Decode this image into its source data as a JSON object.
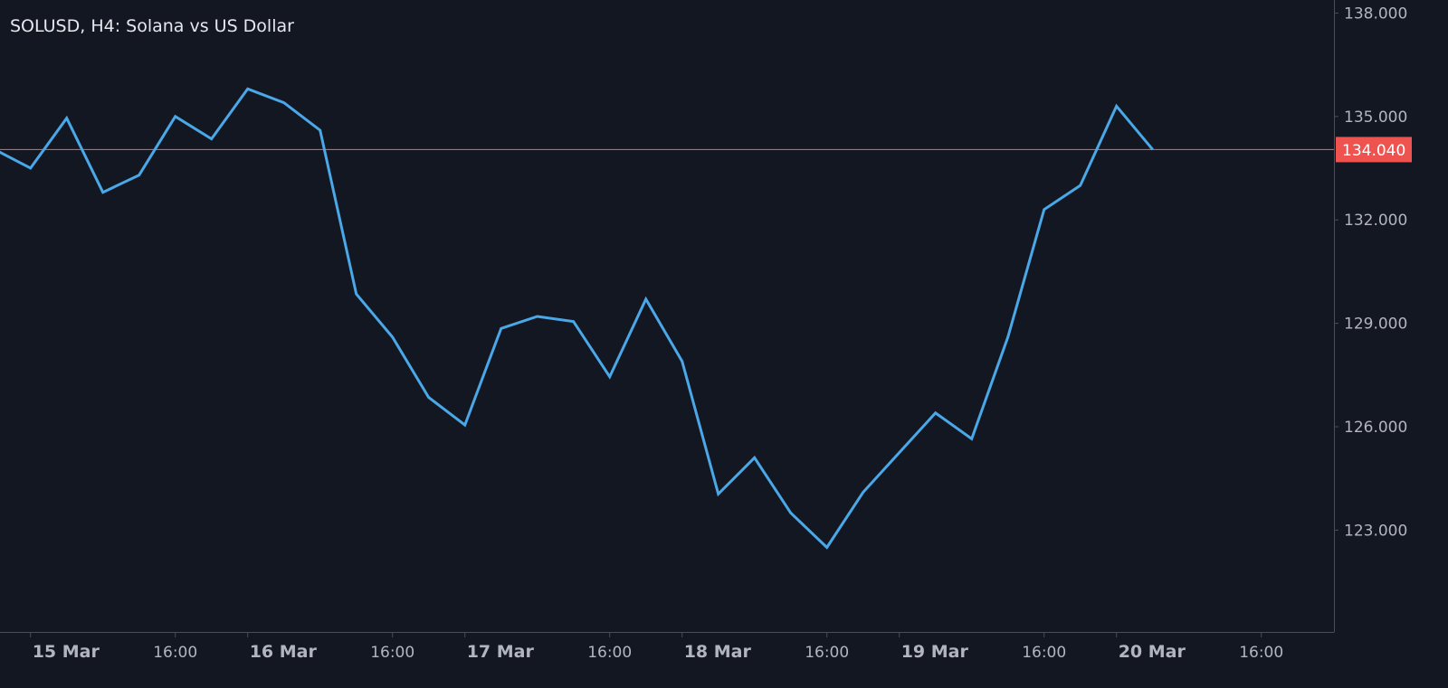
{
  "chart_data": {
    "type": "line",
    "title": "SOLUSD, H4: Solana vs US Dollar",
    "xlabel": "",
    "ylabel": "",
    "ylim": [
      120.0,
      138.2
    ],
    "grid": false,
    "y_ticks": [
      "123.000",
      "126.000",
      "129.000",
      "132.000",
      "135.000",
      "138.000"
    ],
    "x_ticks": [
      {
        "label": "15 Mar",
        "major": true,
        "index": 1
      },
      {
        "label": "16:00",
        "major": false,
        "index": 5
      },
      {
        "label": "16 Mar",
        "major": true,
        "index": 7
      },
      {
        "label": "16:00",
        "major": false,
        "index": 11
      },
      {
        "label": "17 Mar",
        "major": true,
        "index": 13
      },
      {
        "label": "16:00",
        "major": false,
        "index": 17
      },
      {
        "label": "18 Mar",
        "major": true,
        "index": 19
      },
      {
        "label": "16:00",
        "major": false,
        "index": 23
      },
      {
        "label": "19 Mar",
        "major": true,
        "index": 25
      },
      {
        "label": "16:00",
        "major": false,
        "index": 29
      },
      {
        "label": "20 Mar",
        "major": true,
        "index": 31
      },
      {
        "label": "16:00",
        "major": false,
        "index": 35
      }
    ],
    "series": [
      {
        "color": "#4aa8e8",
        "values": [
          134.05,
          133.5,
          134.95,
          132.8,
          133.3,
          135.0,
          134.35,
          135.8,
          135.4,
          134.6,
          129.85,
          128.6,
          126.85,
          126.05,
          128.85,
          129.2,
          129.05,
          127.45,
          129.7,
          127.9,
          124.05,
          125.1,
          123.5,
          122.5,
          124.1,
          125.25,
          126.4,
          125.65,
          128.6,
          132.3,
          133.0,
          135.3,
          134.04
        ]
      }
    ],
    "current_price": {
      "value": 134.04,
      "label": "134.040",
      "color": "#ef5350"
    }
  }
}
